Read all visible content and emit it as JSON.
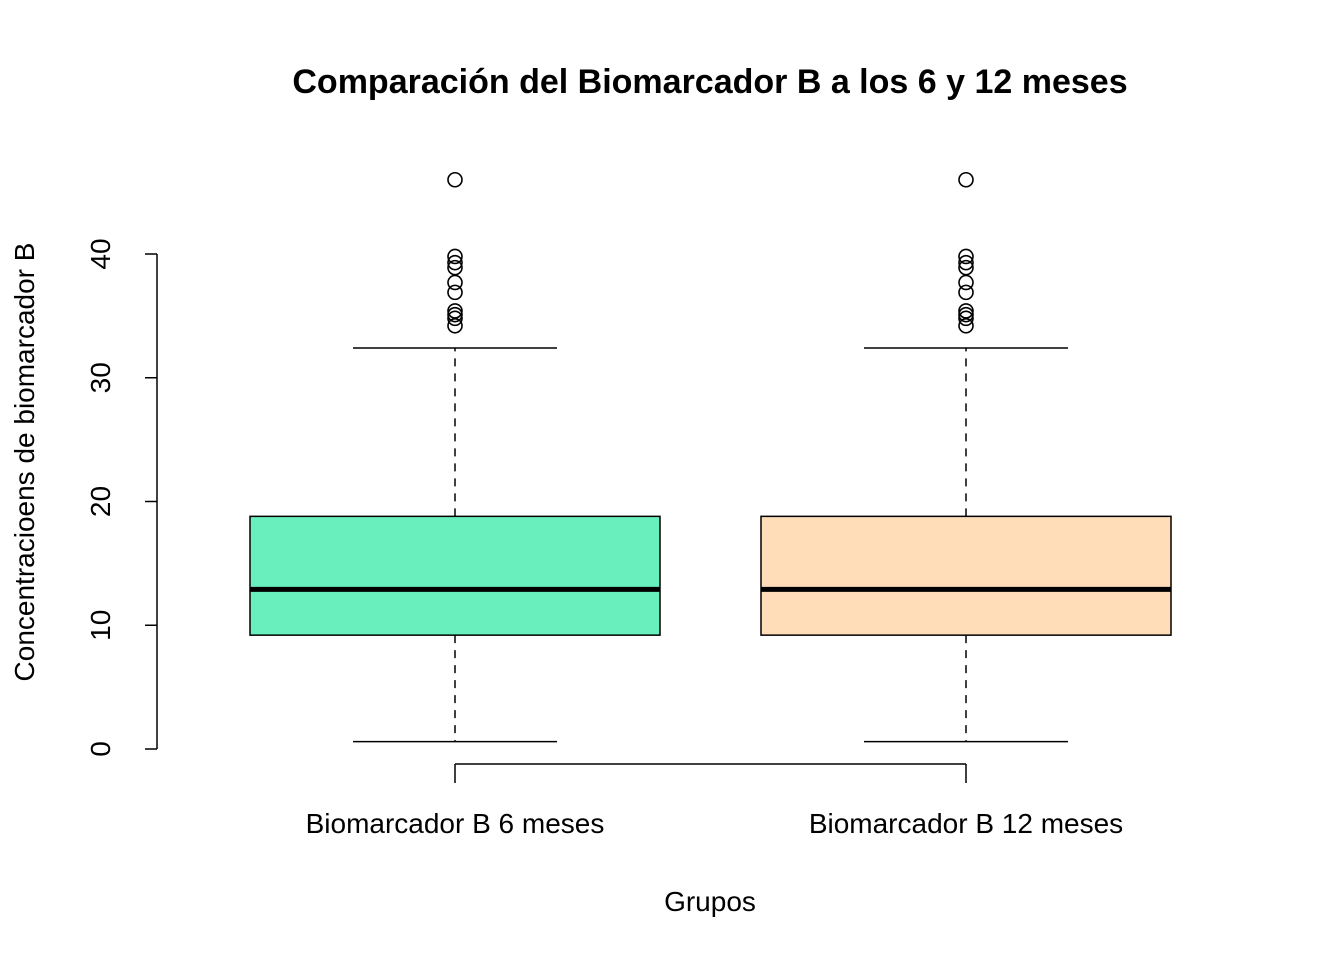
{
  "chart_data": {
    "type": "boxplot",
    "title": "Comparación del Biomarcador B a los 6 y 12 meses",
    "xlabel": "Grupos",
    "ylabel": "Concentracioens de biomarcador B",
    "ylim": [
      0,
      40
    ],
    "yticks": [
      0,
      10,
      20,
      30,
      40
    ],
    "grid": false,
    "categories": [
      "Biomarcador B 6 meses",
      "Biomarcador B 12 meses"
    ],
    "series": [
      {
        "color": "#69EEBD",
        "whisker_low": 0.6,
        "q1": 9.2,
        "median": 12.9,
        "q3": 18.8,
        "whisker_high": 32.4,
        "outliers": [
          46.0,
          39.8,
          39.3,
          38.9,
          37.7,
          36.9,
          35.4,
          35.1,
          34.8,
          34.2
        ]
      },
      {
        "color": "#FFDDB9",
        "whisker_low": 0.6,
        "q1": 9.2,
        "median": 12.9,
        "q3": 18.8,
        "whisker_high": 32.4,
        "outliers": [
          46.0,
          39.8,
          39.3,
          38.9,
          37.7,
          36.9,
          35.4,
          35.1,
          34.8,
          34.2
        ]
      }
    ]
  }
}
